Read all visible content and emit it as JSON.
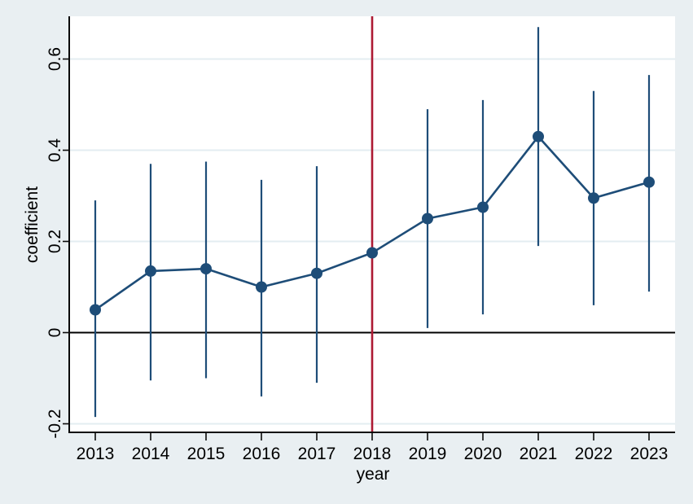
{
  "chart_data": {
    "type": "line",
    "title": "",
    "xlabel": "year",
    "ylabel": "coefficient",
    "x": [
      2013,
      2014,
      2015,
      2016,
      2017,
      2018,
      2019,
      2020,
      2021,
      2022,
      2023
    ],
    "x_tick_labels": [
      "2013",
      "2014",
      "2015",
      "2016",
      "2017",
      "2018",
      "2019",
      "2020",
      "2021",
      "2022",
      "2023"
    ],
    "series": [
      {
        "name": "coefficient",
        "values": [
          0.05,
          0.135,
          0.14,
          0.1,
          0.13,
          0.175,
          0.25,
          0.275,
          0.43,
          0.295,
          0.33
        ],
        "ci_high": [
          0.29,
          0.37,
          0.375,
          0.335,
          0.365,
          null,
          0.49,
          0.51,
          0.67,
          0.53,
          0.565
        ],
        "ci_low": [
          -0.185,
          -0.105,
          -0.1,
          -0.14,
          -0.11,
          null,
          0.01,
          0.04,
          0.19,
          0.06,
          0.09
        ]
      }
    ],
    "yticks": [
      -0.2,
      0,
      0.2,
      0.4,
      0.6
    ],
    "ytick_labels": [
      "-0.2",
      "0",
      "0.2",
      "0.4",
      "0.6"
    ],
    "ylim": [
      -0.22,
      0.695
    ],
    "xlim": [
      2012.55,
      2023.5
    ],
    "grid": true,
    "zero_line": true,
    "reference_line_x": 2018,
    "legend_position": "none",
    "colors": {
      "series": "#1e4d78",
      "reference_line": "#ad1a33",
      "background": "#e9eff2",
      "plot_background": "#ffffff",
      "gridline": "#e3edf1",
      "axis": "#0a0a0a",
      "zero_line": "#000000",
      "text": "#000000"
    }
  }
}
